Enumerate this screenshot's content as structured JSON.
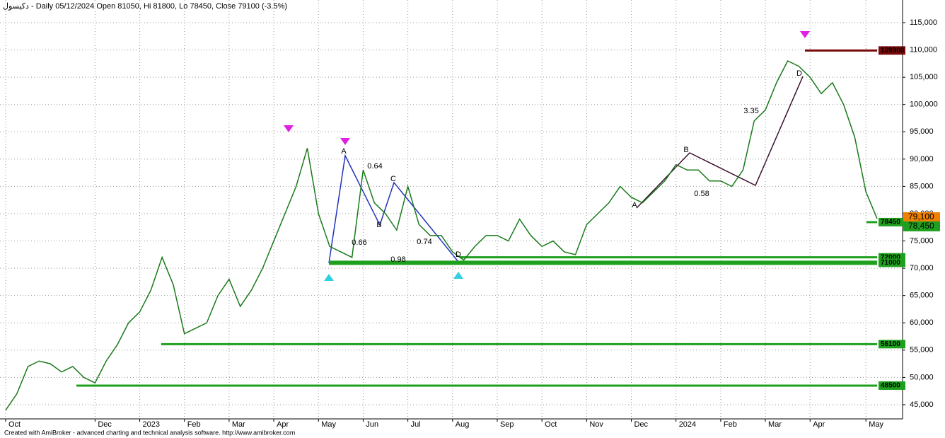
{
  "chart_data": {
    "type": "line",
    "title": "دکیسول - Daily 05/12/2024 Open 81050, Hi 81800, Lo 78450, Close 79100 (-3.5%)",
    "footer": "Created with AmiBroker - advanced charting and technical analysis software. http://www.amibroker.com",
    "categories": [
      "Oct",
      null,
      null,
      null,
      null,
      null,
      null,
      null,
      "Dec",
      null,
      null,
      null,
      "2023",
      null,
      null,
      null,
      "Feb",
      null,
      null,
      null,
      "Mar",
      null,
      null,
      null,
      "Apr",
      null,
      null,
      null,
      "May",
      null,
      null,
      null,
      "Jun",
      null,
      null,
      null,
      "Jul",
      null,
      null,
      null,
      "Aug",
      null,
      null,
      null,
      "Sep",
      null,
      null,
      null,
      "Oct",
      null,
      null,
      null,
      "Nov",
      null,
      null,
      null,
      "Dec",
      null,
      null,
      null,
      "2024",
      null,
      null,
      null,
      "Feb",
      null,
      null,
      null,
      "Mar",
      null,
      null,
      null,
      "Apr",
      null,
      null,
      null,
      null,
      "May",
      null
    ],
    "series": [
      {
        "name": "Close",
        "color": "#1a7a1a",
        "values": [
          44000,
          47000,
          52000,
          53000,
          52500,
          51000,
          52000,
          50000,
          49000,
          53000,
          56000,
          60000,
          62000,
          66000,
          72000,
          67000,
          58000,
          59000,
          60000,
          65000,
          68000,
          63000,
          66000,
          70000,
          75000,
          80000,
          85000,
          92000,
          80000,
          74000,
          73000,
          72000,
          88000,
          82000,
          80000,
          77000,
          85000,
          78000,
          76000,
          76000,
          73000,
          71500,
          74000,
          76000,
          76000,
          75000,
          79000,
          76000,
          74000,
          75000,
          73000,
          72500,
          78000,
          80000,
          82000,
          85000,
          83000,
          82000,
          84000,
          86000,
          89000,
          88000,
          88000,
          86000,
          86000,
          85000,
          88000,
          97000,
          99000,
          104000,
          108000,
          107000,
          105000,
          102000,
          104000,
          100000,
          94000,
          84000,
          79100
        ]
      }
    ],
    "ylim": [
      42400,
      119150
    ],
    "yticks": [
      {
        "value": 45000,
        "label": "45,000"
      },
      {
        "value": 50000,
        "label": "50,000"
      },
      {
        "value": 55000,
        "label": "55,000"
      },
      {
        "value": 60000,
        "label": "60,000"
      },
      {
        "value": 65000,
        "label": "65,000"
      },
      {
        "value": 70000,
        "label": "70,000"
      },
      {
        "value": 75000,
        "label": "75,000"
      },
      {
        "value": 80000,
        "label": "80,000"
      },
      {
        "value": 85000,
        "label": "85,000"
      },
      {
        "value": 90000,
        "label": "90,000"
      },
      {
        "value": 95000,
        "label": "95,000"
      },
      {
        "value": 100000,
        "label": "100,000"
      },
      {
        "value": 105000,
        "label": "105,000"
      },
      {
        "value": 110000,
        "label": "110,000"
      },
      {
        "value": 115000,
        "label": "115,000"
      }
    ],
    "grid": true,
    "levels": [
      {
        "value": 109900,
        "color": "#7a0a0a"
      },
      {
        "value": 72000,
        "color": "#1ea01e"
      },
      {
        "value": 71000,
        "color": "#1ea01e"
      },
      {
        "value": 56100,
        "color": "#1ea01e"
      },
      {
        "value": 48500,
        "color": "#1ea01e"
      },
      {
        "value": 78450,
        "color": "#1ea01e"
      }
    ],
    "price_labels": [
      {
        "value": 79100,
        "label": "79,100",
        "color": "#f08000"
      },
      {
        "value": 78450,
        "label": "78,450",
        "color": "#1ea01e"
      }
    ],
    "annotations": [
      "A",
      "B",
      "C",
      "D",
      "0.64",
      "0.66",
      "0.98",
      "0.74",
      "A",
      "B",
      "D",
      "3.35",
      "0.58"
    ]
  }
}
